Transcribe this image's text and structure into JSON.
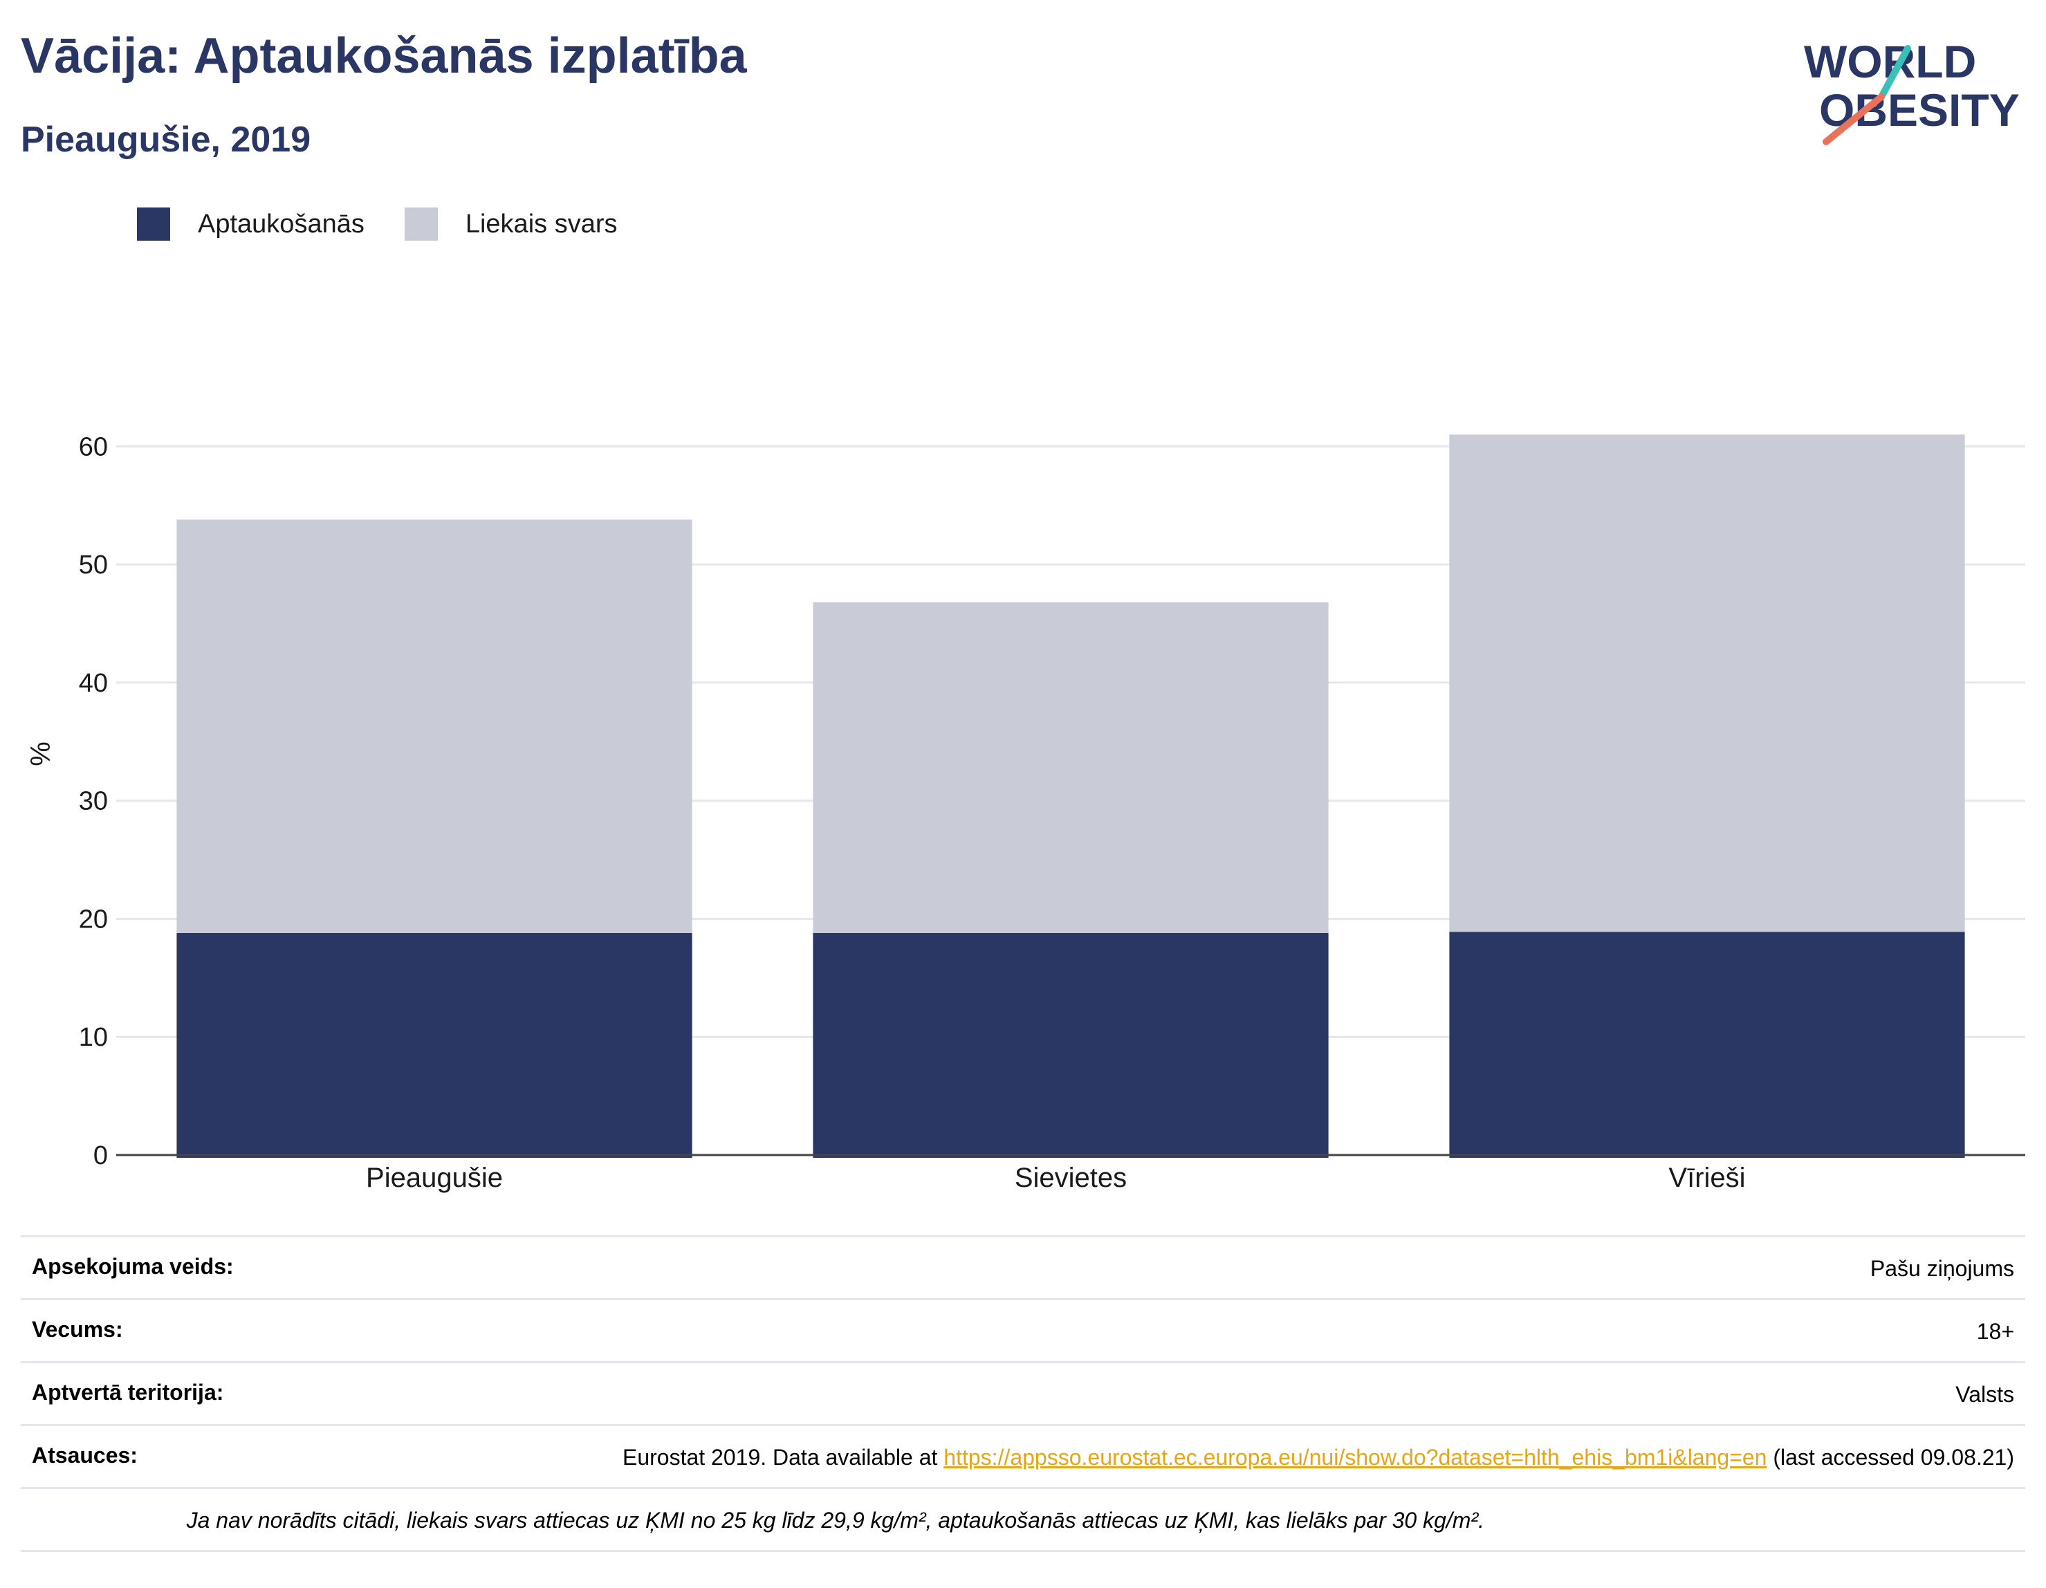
{
  "header": {
    "title": "Vācija: Aptaukošanās izplatība",
    "subtitle": "Pieaugušie, 2019"
  },
  "logo": {
    "line1": "WORLD",
    "line2": "OBESITY",
    "accent_teal": "#3bbfb9",
    "accent_coral": "#e8735a",
    "text_color": "#2a3764"
  },
  "chart_data": {
    "type": "bar",
    "stacked": true,
    "categories": [
      "Pieaugušie",
      "Sievietes",
      "Vīrieši"
    ],
    "series": [
      {
        "name": "Aptaukošanās",
        "color": "#2a3764",
        "values": [
          18.8,
          18.8,
          18.9
        ]
      },
      {
        "name": "Liekais svars",
        "color": "#c9cbd7",
        "values": [
          35.0,
          28.0,
          42.1
        ]
      }
    ],
    "ylabel": "%",
    "ylim": [
      0,
      65
    ],
    "yticks": [
      0,
      10,
      20,
      30,
      40,
      50,
      60
    ],
    "grid": true,
    "legend_position": "top-left"
  },
  "info": {
    "survey_key": "Apsekojuma veids:",
    "survey_val": "Pašu ziņojums",
    "age_key": "Vecums:",
    "age_val": "18+",
    "area_key": "Aptvertā teritorija:",
    "area_val": "Valsts",
    "refs_key": "Atsauces:",
    "refs_prefix": "Eurostat 2019. Data available at ",
    "refs_link": "https://appsso.eurostat.ec.europa.eu/nui/show.do?dataset=hlth_ehis_bm1i&lang=en",
    "refs_suffix": " (last accessed 09.08.21)",
    "note": "Ja nav norādīts citādi, liekais svars attiecas uz ĶMI no 25 kg līdz 29,9 kg/m², aptaukošanās attiecas uz ĶMI, kas lielāks par 30 kg/m²."
  }
}
